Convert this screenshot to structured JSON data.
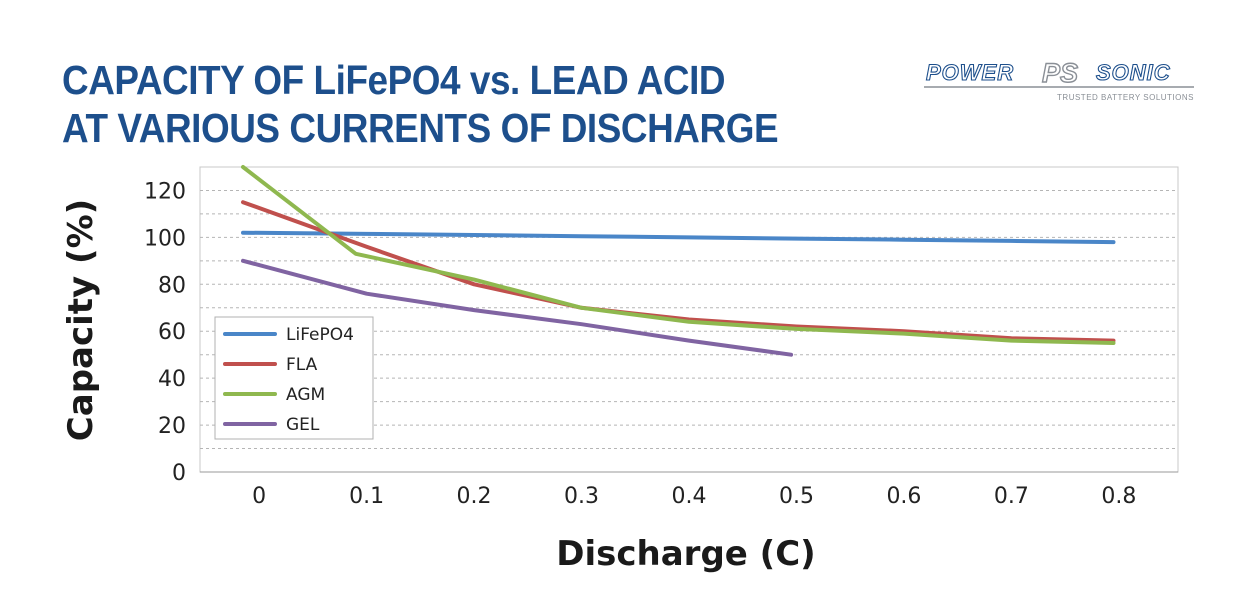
{
  "title": {
    "line1": "CAPACITY OF LiFePO4 vs. LEAD ACID",
    "line2": "AT VARIOUS CURRENTS OF DISCHARGE"
  },
  "logo": {
    "text_left": "POWER",
    "text_right": "SONIC",
    "tagline": "TRUSTED BATTERY SOLUTIONS",
    "emblem": "PS"
  },
  "colors": {
    "title": "#1d4f8c",
    "LiFePO4": "#4a86c8",
    "FLA": "#c0504d",
    "AGM": "#8fb84f",
    "GEL": "#8064a2"
  },
  "chart_data": {
    "type": "line",
    "title": "CAPACITY OF LiFePO4 vs. LEAD ACID AT VARIOUS CURRENTS OF DISCHARGE",
    "xlabel": "Discharge (C)",
    "ylabel": "Capacity (%)",
    "x_ticks": [
      "0",
      "0.1",
      "0.2",
      "0.3",
      "0.4",
      "0.5",
      "0.6",
      "0.7",
      "0.8"
    ],
    "y_ticks": [
      "0",
      "20",
      "40",
      "60",
      "80",
      "100",
      "120"
    ],
    "xlim": [
      -0.055,
      0.855
    ],
    "ylim": [
      0,
      130
    ],
    "grid": "horizontal dashed",
    "legend_position": "bottom-left",
    "series": [
      {
        "name": "LiFePO4",
        "x": [
          -0.015,
          0.1,
          0.2,
          0.3,
          0.4,
          0.5,
          0.6,
          0.7,
          0.795
        ],
        "y": [
          102,
          101.5,
          101,
          100.5,
          100,
          99.5,
          99,
          98.5,
          98
        ]
      },
      {
        "name": "FLA",
        "x": [
          -0.015,
          0.1,
          0.2,
          0.3,
          0.4,
          0.5,
          0.6,
          0.7,
          0.795
        ],
        "y": [
          115,
          96,
          80,
          70,
          65,
          62,
          60,
          57,
          56
        ]
      },
      {
        "name": "AGM",
        "x": [
          -0.015,
          0.09,
          0.2,
          0.3,
          0.4,
          0.5,
          0.6,
          0.7,
          0.795
        ],
        "y": [
          130,
          93,
          82,
          70,
          64,
          61,
          59,
          56,
          55
        ]
      },
      {
        "name": "GEL",
        "x": [
          -0.015,
          0.1,
          0.2,
          0.3,
          0.4,
          0.495
        ],
        "y": [
          90,
          76,
          69,
          63,
          56,
          50
        ]
      }
    ]
  }
}
